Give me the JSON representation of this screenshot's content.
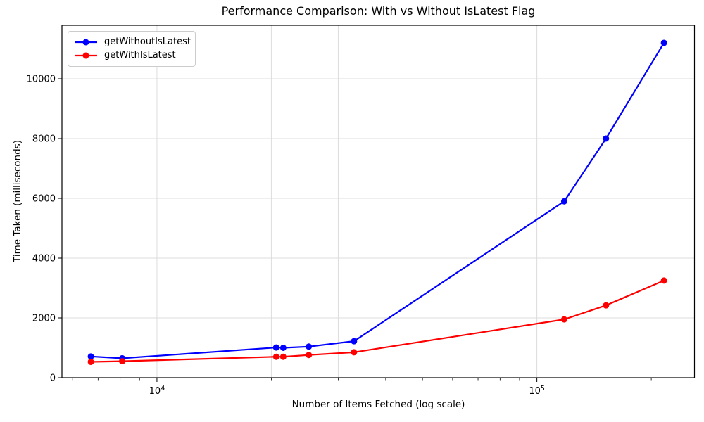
{
  "chart_data": {
    "type": "line",
    "title": "Performance Comparison: With vs Without IsLatest Flag",
    "xlabel": "Number of Items Fetched (log scale)",
    "ylabel": "Time Taken (milliseconds)",
    "x_scale": "log",
    "xlim": [
      5623,
      259900
    ],
    "ylim": [
      0,
      11788
    ],
    "x": [
      6700,
      8100,
      20600,
      21500,
      25100,
      33000,
      118000,
      152000,
      216000
    ],
    "series": [
      {
        "name": "getWithoutIsLatest",
        "color": "#0000ff",
        "values": [
          710,
          650,
          1010,
          1000,
          1040,
          1220,
          5900,
          8000,
          11200
        ]
      },
      {
        "name": "getWithIsLatest",
        "color": "#ff0000",
        "values": [
          530,
          550,
          700,
          700,
          760,
          850,
          1950,
          2420,
          3250
        ]
      }
    ],
    "legend": {
      "position": "upper-left",
      "entries": [
        "getWithoutIsLatest",
        "getWithIsLatest"
      ]
    },
    "x_axis": {
      "major_ticks": [
        {
          "value": 10000,
          "label_base": "10",
          "label_exp": "4"
        },
        {
          "value": 100000,
          "label_base": "10",
          "label_exp": "5"
        }
      ],
      "minor_ticks": [
        6000,
        7000,
        8000,
        9000,
        20000,
        30000,
        40000,
        50000,
        60000,
        70000,
        80000,
        90000,
        200000
      ]
    },
    "y_axis": {
      "ticks": [
        0,
        2000,
        4000,
        6000,
        8000,
        10000
      ]
    },
    "grid": {
      "x_lines": [
        10000,
        20000,
        30000,
        100000
      ],
      "y_lines": [
        2000,
        4000,
        6000,
        8000,
        10000
      ],
      "color": "#dcdcdc"
    },
    "colors": {
      "spine": "#000000",
      "tick_label": "#000000"
    }
  }
}
